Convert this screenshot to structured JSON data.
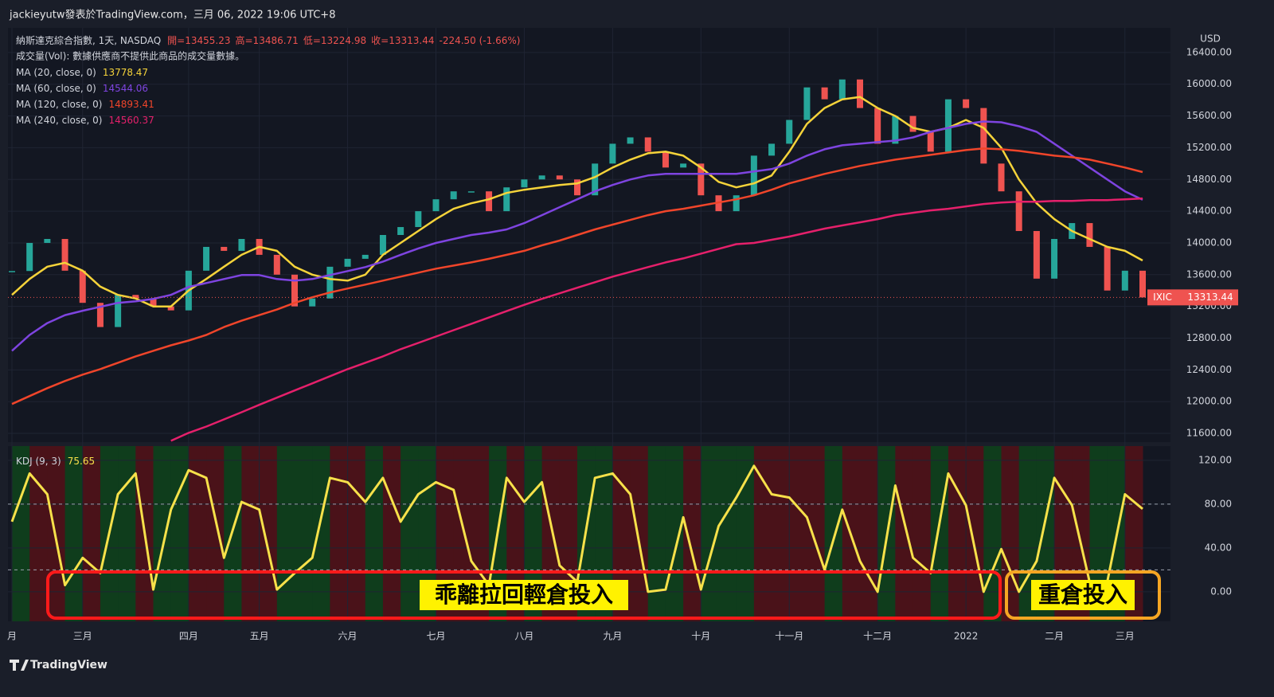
{
  "header": "jackieyutw發表於TradingView.com，三月 06, 2022 19:06 UTC+8",
  "footer": "TradingView",
  "chart_data": [
    {
      "type": "candlestick",
      "title": "納斯達克綜合指數, 1天, NASDAQ",
      "ohlc": [
        "開=13455.23",
        "高=13486.71",
        "低=13224.98",
        "收=13313.44",
        "-224.50 (-1.66%)"
      ],
      "subtitle": "成交量(Vol): 數據供應商不提供此商品的成交量數據。",
      "currency": "USD",
      "up_color": "#26a69a",
      "down_color": "#ef5350",
      "ylim": [
        11490,
        16710
      ],
      "yticks": [
        {
          "value": 11600,
          "label": "11600.00"
        },
        {
          "value": 12000,
          "label": "12000.00"
        },
        {
          "value": 12400,
          "label": "12400.00"
        },
        {
          "value": 12800,
          "label": "12800.00"
        },
        {
          "value": 13200,
          "label": "13200.00"
        },
        {
          "value": 13600,
          "label": "13600.00"
        },
        {
          "value": 14000,
          "label": "14000.00"
        },
        {
          "value": 14400,
          "label": "14400.00"
        },
        {
          "value": 14800,
          "label": "14800.00"
        },
        {
          "value": 15200,
          "label": "15200.00"
        },
        {
          "value": 15600,
          "label": "15600.00"
        },
        {
          "value": 16000,
          "label": "16000.00"
        },
        {
          "value": 16400,
          "label": "16400.00"
        }
      ],
      "grid": true,
      "series": [
        {
          "name": "IXIC",
          "color": "#ef5350",
          "values": [
            13646,
            14000,
            14050,
            13650,
            13245,
            12940,
            13345,
            13300,
            13200,
            13150,
            13650,
            13950,
            13900,
            14050,
            13850,
            13600,
            13200,
            13300,
            13700,
            13800,
            13850,
            14100,
            14200,
            14400,
            14550,
            14650,
            14650,
            14400,
            14700,
            14800,
            14850,
            14800,
            14600,
            15000,
            15250,
            15330,
            15150,
            14950,
            15000,
            14600,
            14400,
            14600,
            15100,
            15250,
            15550,
            15960,
            15810,
            16060,
            15700,
            15250,
            15600,
            15400,
            15150,
            15810,
            15700,
            15000,
            14650,
            14150,
            13550,
            14050,
            14250,
            13950,
            13400,
            13650,
            13313.44
          ]
        },
        {
          "name": "MA (20, close, 0)",
          "color": "#f5d33a",
          "values": [
            13345,
            13546,
            13700,
            13750,
            13650,
            13450,
            13345,
            13300,
            13200,
            13200,
            13400,
            13546,
            13700,
            13850,
            13950,
            13900,
            13700,
            13600,
            13546,
            13525,
            13600,
            13850,
            14000,
            14150,
            14300,
            14430,
            14500,
            14550,
            14630,
            14670,
            14700,
            14730,
            14750,
            14830,
            14950,
            15050,
            15130,
            15150,
            15100,
            14950,
            14770,
            14700,
            14750,
            14850,
            15150,
            15500,
            15700,
            15810,
            15840,
            15700,
            15600,
            15450,
            15400,
            15450,
            15550,
            15450,
            15200,
            14800,
            14500,
            14300,
            14150,
            14050,
            13950,
            13900,
            13778.47
          ]
        },
        {
          "name": "MA (60, close, 0)",
          "color": "#7e44e0",
          "values": [
            12640,
            12840,
            12990,
            13090,
            13145,
            13195,
            13245,
            13265,
            13295,
            13345,
            13445,
            13495,
            13545,
            13595,
            13595,
            13545,
            13525,
            13545,
            13595,
            13645,
            13695,
            13765,
            13850,
            13930,
            14000,
            14050,
            14100,
            14130,
            14170,
            14250,
            14350,
            14450,
            14550,
            14650,
            14730,
            14800,
            14850,
            14870,
            14870,
            14870,
            14870,
            14870,
            14900,
            14930,
            15000,
            15100,
            15180,
            15230,
            15250,
            15270,
            15290,
            15330,
            15400,
            15450,
            15500,
            15530,
            15520,
            15470,
            15400,
            15250,
            15100,
            14950,
            14800,
            14650,
            14544.06
          ]
        },
        {
          "name": "MA (120, close, 0)",
          "color": "#f0452a",
          "values": [
            11970,
            12070,
            12170,
            12260,
            12340,
            12410,
            12490,
            12570,
            12640,
            12710,
            12770,
            12840,
            12940,
            13020,
            13090,
            13160,
            13245,
            13315,
            13375,
            13425,
            13475,
            13525,
            13575,
            13625,
            13675,
            13715,
            13755,
            13800,
            13850,
            13900,
            13970,
            14030,
            14100,
            14170,
            14230,
            14290,
            14350,
            14400,
            14430,
            14470,
            14510,
            14550,
            14600,
            14670,
            14750,
            14810,
            14870,
            14920,
            14970,
            15010,
            15050,
            15080,
            15110,
            15140,
            15170,
            15190,
            15180,
            15160,
            15130,
            15100,
            15080,
            15050,
            15000,
            14950,
            14893.41
          ]
        },
        {
          "name": "MA (240, close, 0)",
          "color": "#e5206b",
          "values": [
            null,
            null,
            null,
            null,
            null,
            null,
            null,
            null,
            null,
            11506,
            11606,
            11686,
            11776,
            11866,
            11960,
            12050,
            12140,
            12230,
            12320,
            12410,
            12490,
            12570,
            12660,
            12740,
            12820,
            12900,
            12980,
            13060,
            13140,
            13220,
            13295,
            13365,
            13435,
            13505,
            13575,
            13635,
            13695,
            13755,
            13805,
            13865,
            13925,
            13985,
            14000,
            14040,
            14080,
            14130,
            14180,
            14220,
            14260,
            14300,
            14350,
            14380,
            14410,
            14430,
            14460,
            14490,
            14510,
            14520,
            14520,
            14530,
            14530,
            14540,
            14540,
            14550,
            14560.37
          ]
        }
      ]
    },
    {
      "type": "line",
      "title": "KDJ (9, 3)",
      "categories": [
        "月",
        null,
        null,
        null,
        "三月",
        null,
        null,
        null,
        null,
        null,
        "四月",
        null,
        null,
        null,
        "五月",
        null,
        null,
        null,
        null,
        "六月",
        null,
        null,
        null,
        null,
        "七月",
        null,
        null,
        null,
        null,
        "八月",
        null,
        null,
        null,
        null,
        "九月",
        null,
        null,
        null,
        null,
        "十月",
        null,
        null,
        null,
        null,
        "十一月",
        null,
        null,
        null,
        null,
        "十二月",
        null,
        null,
        null,
        null,
        "2022",
        null,
        null,
        null,
        null,
        "二月",
        null,
        null,
        null,
        "三月",
        null
      ],
      "ylim": [
        -27,
        133
      ],
      "yticks": [
        {
          "value": 0,
          "label": "0.00"
        },
        {
          "value": 40,
          "label": "40.00"
        },
        {
          "value": 80,
          "label": "80.00"
        },
        {
          "value": 120,
          "label": "120.00"
        }
      ],
      "levels": [
        80,
        20
      ],
      "rise_color": "#0f3d1c",
      "fall_color": "#4a1219",
      "series": [
        {
          "name": "KDJ (9, 3)",
          "color": "#f7e14a",
          "values": [
            64,
            108,
            89,
            6,
            31,
            17,
            89,
            108,
            2,
            75,
            111,
            104,
            31,
            82,
            75,
            2,
            17,
            31,
            104,
            100,
            82,
            104,
            64,
            89,
            100,
            93,
            28,
            6,
            104,
            82,
            100,
            24,
            9,
            104,
            108,
            89,
            0,
            2,
            68,
            2,
            60,
            86,
            115,
            89,
            86,
            68,
            20,
            75,
            28,
            0,
            97,
            31,
            17,
            108,
            79,
            0,
            39,
            0,
            28,
            104,
            79,
            9,
            9,
            89,
            75.65
          ]
        }
      ],
      "annotations": [
        "乖離拉回輕倉投入",
        "重倉投入"
      ]
    }
  ]
}
